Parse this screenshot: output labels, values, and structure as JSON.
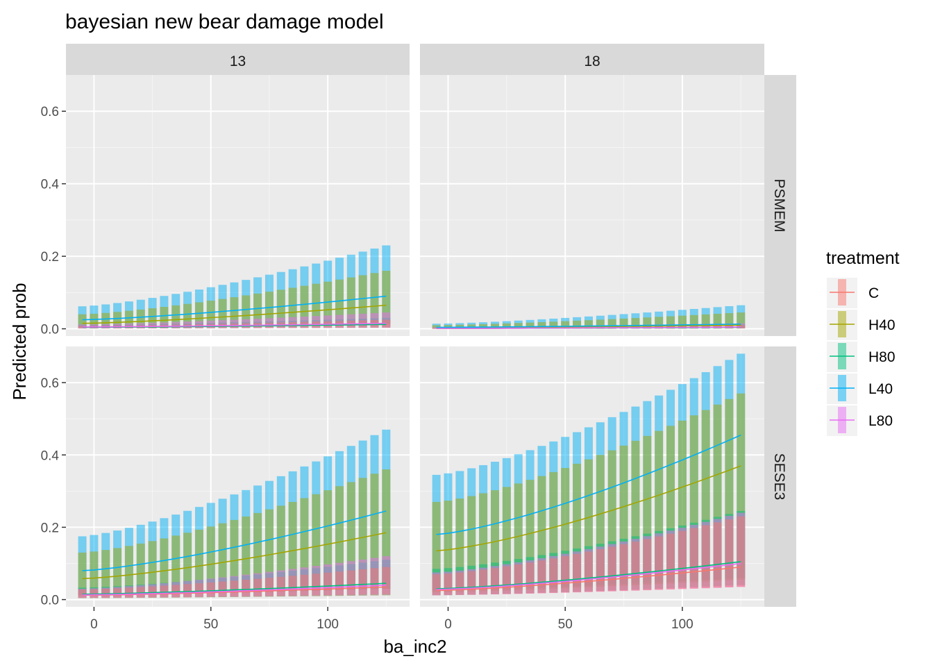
{
  "chart_data": {
    "type": "bar",
    "title": "bayesian new bear damage model",
    "xlabel": "ba_inc2",
    "ylabel": "Predicted prob",
    "facet_cols": [
      "13",
      "18"
    ],
    "facet_rows": [
      "PSMEM",
      "SESE3"
    ],
    "xlim": [
      -12,
      135
    ],
    "ylim": [
      -0.02,
      0.7
    ],
    "x_ticks": [
      0,
      50,
      100
    ],
    "y_ticks": [
      0.0,
      0.2,
      0.4,
      0.6
    ],
    "y_tick_labels": [
      "0.0",
      "0.2",
      "0.4",
      "0.6"
    ],
    "grid": true,
    "legend": {
      "title": "treatment",
      "placement": "right",
      "entries": [
        "C",
        "H40",
        "H80",
        "L40",
        "L80"
      ]
    },
    "colors": {
      "C": "#F8766D",
      "H40": "#A3A500",
      "H80": "#00BF7D",
      "L40": "#00B0F6",
      "L80": "#E76BF3",
      "panel_bg": "#EBEBEB",
      "strip_bg": "#D9D9D9"
    },
    "x": [
      -5,
      0,
      5,
      10,
      15,
      20,
      25,
      30,
      35,
      40,
      45,
      50,
      55,
      60,
      65,
      70,
      75,
      80,
      85,
      90,
      95,
      100,
      105,
      110,
      115,
      120,
      125
    ],
    "panels": [
      {
        "col": "13",
        "row": "PSMEM",
        "series": {
          "C": {
            "mean": [
              0.004,
              0.012
            ],
            "lo": [
              0.001,
              0.003
            ],
            "hi": [
              0.008,
              0.025
            ]
          },
          "H40": {
            "mean": [
              0.015,
              0.065
            ],
            "lo": [
              0.004,
              0.01
            ],
            "hi": [
              0.04,
              0.16
            ]
          },
          "H80": {
            "mean": [
              0.004,
              0.012
            ],
            "lo": [
              0.001,
              0.003
            ],
            "hi": [
              0.01,
              0.03
            ]
          },
          "L40": {
            "mean": [
              0.025,
              0.09
            ],
            "lo": [
              0.005,
              0.015
            ],
            "hi": [
              0.062,
              0.23
            ]
          },
          "L80": {
            "mean": [
              0.005,
              0.015
            ],
            "lo": [
              0.001,
              0.003
            ],
            "hi": [
              0.012,
              0.045
            ]
          }
        }
      },
      {
        "col": "18",
        "row": "PSMEM",
        "series": {
          "C": {
            "mean": [
              0.001,
              0.004
            ],
            "lo": [
              0.0,
              0.001
            ],
            "hi": [
              0.003,
              0.01
            ]
          },
          "H40": {
            "mean": [
              0.003,
              0.01
            ],
            "lo": [
              0.001,
              0.002
            ],
            "hi": [
              0.01,
              0.045
            ]
          },
          "H80": {
            "mean": [
              0.001,
              0.004
            ],
            "lo": [
              0.0,
              0.001
            ],
            "hi": [
              0.003,
              0.012
            ]
          },
          "L40": {
            "mean": [
              0.004,
              0.013
            ],
            "lo": [
              0.001,
              0.002
            ],
            "hi": [
              0.014,
              0.065
            ]
          },
          "L80": {
            "mean": [
              0.001,
              0.005
            ],
            "lo": [
              0.0,
              0.001
            ],
            "hi": [
              0.004,
              0.015
            ]
          }
        }
      },
      {
        "col": "13",
        "row": "SESE3",
        "series": {
          "C": {
            "mean": [
              0.012,
              0.035
            ],
            "lo": [
              0.004,
              0.012
            ],
            "hi": [
              0.028,
              0.09
            ]
          },
          "H40": {
            "mean": [
              0.058,
              0.185
            ],
            "lo": [
              0.012,
              0.03
            ],
            "hi": [
              0.13,
              0.36
            ]
          },
          "H80": {
            "mean": [
              0.015,
              0.045
            ],
            "lo": [
              0.004,
              0.012
            ],
            "hi": [
              0.033,
              0.11
            ]
          },
          "L40": {
            "mean": [
              0.08,
              0.245
            ],
            "lo": [
              0.012,
              0.03
            ],
            "hi": [
              0.175,
              0.47
            ]
          },
          "L80": {
            "mean": [
              0.013,
              0.04
            ],
            "lo": [
              0.005,
              0.015
            ],
            "hi": [
              0.03,
              0.12
            ]
          }
        }
      },
      {
        "col": "18",
        "row": "SESE3",
        "series": {
          "C": {
            "mean": [
              0.025,
              0.09
            ],
            "lo": [
              0.012,
              0.035
            ],
            "hi": [
              0.07,
              0.23
            ]
          },
          "H40": {
            "mean": [
              0.135,
              0.37
            ],
            "lo": [
              0.02,
              0.055
            ],
            "hi": [
              0.27,
              0.57
            ]
          },
          "H80": {
            "mean": [
              0.03,
              0.105
            ],
            "lo": [
              0.012,
              0.04
            ],
            "hi": [
              0.085,
              0.245
            ]
          },
          "L40": {
            "mean": [
              0.18,
              0.455
            ],
            "lo": [
              0.025,
              0.06
            ],
            "hi": [
              0.345,
              0.68
            ]
          },
          "L80": {
            "mean": [
              0.028,
              0.1
            ],
            "lo": [
              0.012,
              0.035
            ],
            "hi": [
              0.075,
              0.24
            ]
          }
        }
      }
    ]
  }
}
